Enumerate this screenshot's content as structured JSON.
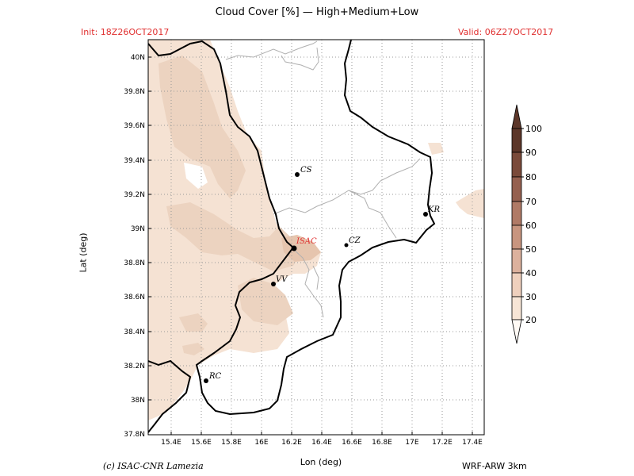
{
  "title": "Cloud Cover [%] — High+Medium+Low",
  "init": "Init: 18Z26OCT2017",
  "valid": "Valid: 06Z27OCT2017",
  "xlabel": "Lon (deg)",
  "ylabel": "Lat (deg)",
  "credit": "(c) ISAC-CNR Lamezia",
  "model": "WRF-ARW 3km",
  "lon_ticks": [
    "15.4E",
    "15.6E",
    "15.8E",
    "16E",
    "16.2E",
    "16.4E",
    "16.6E",
    "16.8E",
    "17E",
    "17.2E",
    "17.4E"
  ],
  "lat_ticks": [
    "40N",
    "39.8N",
    "39.6N",
    "39.4N",
    "39.2N",
    "39N",
    "38.8N",
    "38.6N",
    "38.4N",
    "38.2N",
    "38N",
    "37.8N"
  ],
  "cities": [
    {
      "name": "CS",
      "lon": 16.26,
      "lat": 39.31
    },
    {
      "name": "KR",
      "lon": 17.12,
      "lat": 39.08
    },
    {
      "name": "ISAC",
      "lon": 16.24,
      "lat": 38.88
    },
    {
      "name": "CZ",
      "lon": 16.59,
      "lat": 38.9
    },
    {
      "name": "VV",
      "lon": 16.1,
      "lat": 38.67
    },
    {
      "name": "RC",
      "lon": 15.65,
      "lat": 38.11
    }
  ],
  "colorbar": {
    "levels": [
      "20",
      "30",
      "40",
      "50",
      "60",
      "70",
      "80",
      "90",
      "100"
    ],
    "colors": [
      "#fffaf5",
      "#f7e5d6",
      "#efd0bd",
      "#dcb19d",
      "#c8957f",
      "#b07a66",
      "#95604f",
      "#7a4a3a",
      "#5c3629"
    ]
  },
  "colors": {
    "header_red": "#e03030",
    "isac_red": "#e03030",
    "grid": "#999999"
  }
}
